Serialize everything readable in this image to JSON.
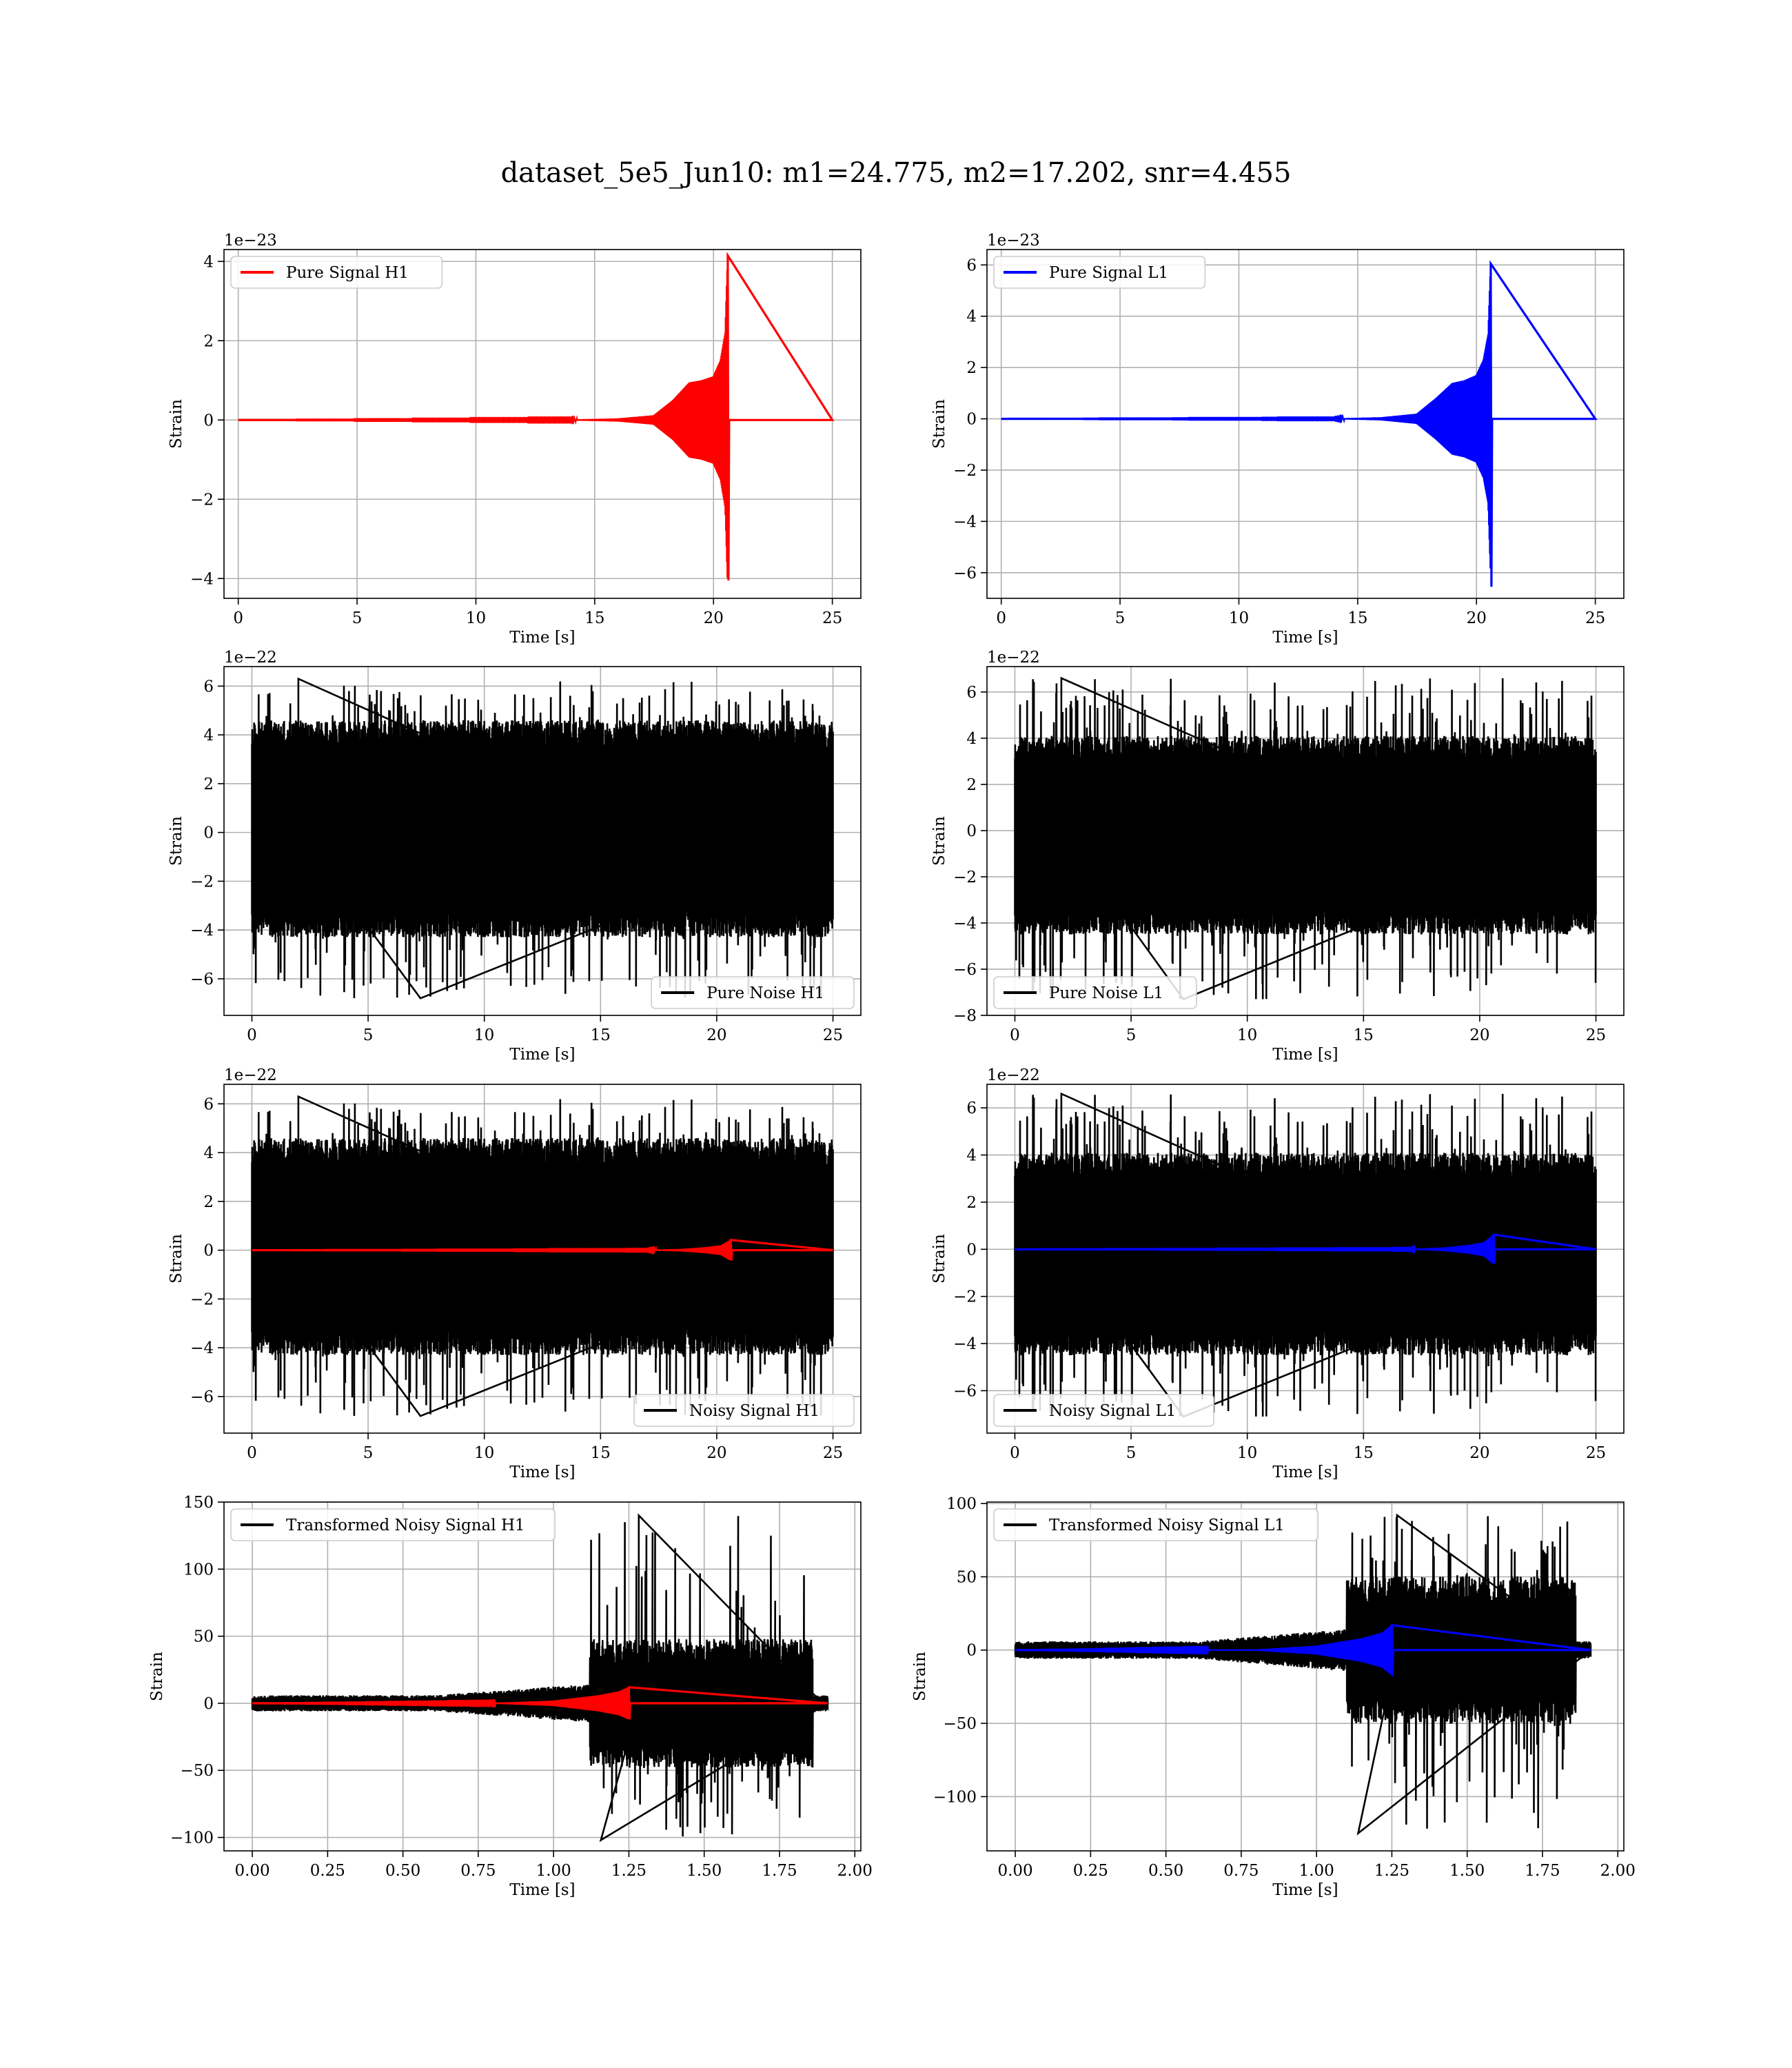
{
  "figure": {
    "suptitle": "dataset_5e5_Jun10: m1=24.775, m2=17.202, snr=4.455",
    "colors": {
      "h1_signal": "#ff0000",
      "l1_signal": "#0000ff",
      "noise": "#000000",
      "grid": "#b0b0b0"
    }
  },
  "chart_data": [
    {
      "id": "pure-signal-h1",
      "type": "line",
      "xlabel": "Time [s]",
      "ylabel": "Strain",
      "offset_text": "1e−23",
      "xlim": [
        -0.6,
        26.2
      ],
      "ylim": [
        -4.5,
        4.3
      ],
      "xticks": [
        0,
        5,
        10,
        15,
        20,
        25
      ],
      "xtick_labels": [
        "0",
        "5",
        "10",
        "15",
        "20",
        "25"
      ],
      "yticks": [
        -4,
        -2,
        0,
        2,
        4
      ],
      "ytick_labels": [
        "−4",
        "−2",
        "0",
        "2",
        "4"
      ],
      "legend_position": "upper-left",
      "grid": true,
      "series": [
        {
          "name": "Pure Signal H1",
          "color": "#ff0000",
          "kind": "chirp",
          "x_start": 0,
          "x_end": 25,
          "merger": 20.6,
          "peak_pos": 4.15,
          "peak_neg": -4.05,
          "envelope": [
            [
              0,
              0
            ],
            [
              14,
              0.01
            ],
            [
              16,
              0.04
            ],
            [
              17.5,
              0.12
            ],
            [
              18.3,
              0.5
            ],
            [
              19,
              0.95
            ],
            [
              19.5,
              1.0
            ],
            [
              20,
              1.1
            ],
            [
              20.3,
              1.5
            ],
            [
              20.5,
              2.2
            ],
            [
              20.6,
              4.1
            ]
          ]
        }
      ]
    },
    {
      "id": "pure-signal-l1",
      "type": "line",
      "xlabel": "Time [s]",
      "ylabel": "Strain",
      "offset_text": "1e−23",
      "xlim": [
        -0.6,
        26.2
      ],
      "ylim": [
        -7.0,
        6.6
      ],
      "xticks": [
        0,
        5,
        10,
        15,
        20,
        25
      ],
      "xtick_labels": [
        "0",
        "5",
        "10",
        "15",
        "20",
        "25"
      ],
      "yticks": [
        -6,
        -4,
        -2,
        0,
        2,
        4,
        6
      ],
      "ytick_labels": [
        "−6",
        "−4",
        "−2",
        "0",
        "2",
        "4",
        "6"
      ],
      "legend_position": "upper-left",
      "grid": true,
      "series": [
        {
          "name": "Pure Signal L1",
          "color": "#0000ff",
          "kind": "chirp",
          "x_start": 0,
          "x_end": 25,
          "merger": 20.6,
          "peak_pos": 6.05,
          "peak_neg": -6.55,
          "envelope": [
            [
              0,
              0
            ],
            [
              14,
              0.01
            ],
            [
              16,
              0.06
            ],
            [
              17.5,
              0.2
            ],
            [
              18.3,
              0.8
            ],
            [
              19,
              1.4
            ],
            [
              19.5,
              1.5
            ],
            [
              20,
              1.7
            ],
            [
              20.3,
              2.3
            ],
            [
              20.5,
              3.3
            ],
            [
              20.6,
              6.0
            ]
          ]
        }
      ]
    },
    {
      "id": "pure-noise-h1",
      "type": "line",
      "xlabel": "Time [s]",
      "ylabel": "Strain",
      "offset_text": "1e−22",
      "xlim": [
        -1.2,
        26.2
      ],
      "ylim": [
        -7.5,
        6.8
      ],
      "xticks": [
        0,
        5,
        10,
        15,
        20,
        25
      ],
      "xtick_labels": [
        "0",
        "5",
        "10",
        "15",
        "20",
        "25"
      ],
      "yticks": [
        -6,
        -4,
        -2,
        0,
        2,
        4,
        6
      ],
      "ytick_labels": [
        "−6",
        "−4",
        "−2",
        "0",
        "2",
        "4",
        "6"
      ],
      "legend_position": "lower-right",
      "grid": true,
      "series": [
        {
          "name": "Pure Noise H1",
          "color": "#000000",
          "kind": "noise",
          "x_start": 0,
          "x_end": 25,
          "band": [
            -3.0,
            3.3
          ],
          "max": 6.3,
          "min": -6.8,
          "seed": 11
        }
      ]
    },
    {
      "id": "pure-noise-l1",
      "type": "line",
      "xlabel": "Time [s]",
      "ylabel": "Strain",
      "offset_text": "1e−22",
      "xlim": [
        -1.2,
        26.2
      ],
      "ylim": [
        -8.0,
        7.1
      ],
      "xticks": [
        0,
        5,
        10,
        15,
        20,
        25
      ],
      "xtick_labels": [
        "0",
        "5",
        "10",
        "15",
        "20",
        "25"
      ],
      "yticks": [
        -8,
        -6,
        -4,
        -2,
        0,
        2,
        4,
        6
      ],
      "ytick_labels": [
        "−8",
        "−6",
        "−4",
        "−2",
        "0",
        "2",
        "4",
        "6"
      ],
      "legend_position": "lower-left",
      "grid": true,
      "series": [
        {
          "name": "Pure Noise L1",
          "color": "#000000",
          "kind": "noise",
          "x_start": 0,
          "x_end": 25,
          "band": [
            -3.2,
            2.8
          ],
          "max": 6.6,
          "min": -7.3,
          "seed": 23
        }
      ]
    },
    {
      "id": "noisy-signal-h1",
      "type": "line",
      "xlabel": "Time [s]",
      "ylabel": "Strain",
      "offset_text": "1e−22",
      "xlim": [
        -1.2,
        26.2
      ],
      "ylim": [
        -7.5,
        6.8
      ],
      "xticks": [
        0,
        5,
        10,
        15,
        20,
        25
      ],
      "xtick_labels": [
        "0",
        "5",
        "10",
        "15",
        "20",
        "25"
      ],
      "yticks": [
        -6,
        -4,
        -2,
        0,
        2,
        4,
        6
      ],
      "ytick_labels": [
        "−6",
        "−4",
        "−2",
        "0",
        "2",
        "4",
        "6"
      ],
      "legend_position": "lower-right",
      "grid": true,
      "series": [
        {
          "name": "Noisy Signal H1",
          "color": "#000000",
          "kind": "noise",
          "x_start": 0,
          "x_end": 25,
          "band": [
            -3.0,
            3.3
          ],
          "max": 6.3,
          "min": -6.8,
          "seed": 11
        },
        {
          "name": "",
          "color": "#ff0000",
          "kind": "chirp",
          "x_start": 0,
          "x_end": 25,
          "merger": 20.6,
          "peak_pos": 0.42,
          "peak_neg": -0.42,
          "envelope": [
            [
              0,
              0
            ],
            [
              17,
              0.01
            ],
            [
              18.5,
              0.05
            ],
            [
              19.5,
              0.12
            ],
            [
              20.2,
              0.2
            ],
            [
              20.6,
              0.42
            ]
          ]
        }
      ]
    },
    {
      "id": "noisy-signal-l1",
      "type": "line",
      "xlabel": "Time [s]",
      "ylabel": "Strain",
      "offset_text": "1e−22",
      "xlim": [
        -1.2,
        26.2
      ],
      "ylim": [
        -7.8,
        7.0
      ],
      "xticks": [
        0,
        5,
        10,
        15,
        20,
        25
      ],
      "xtick_labels": [
        "0",
        "5",
        "10",
        "15",
        "20",
        "25"
      ],
      "yticks": [
        -6,
        -4,
        -2,
        0,
        2,
        4,
        6
      ],
      "ytick_labels": [
        "−6",
        "−4",
        "−2",
        "0",
        "2",
        "4",
        "6"
      ],
      "legend_position": "lower-left",
      "grid": true,
      "series": [
        {
          "name": "Noisy Signal L1",
          "color": "#000000",
          "kind": "noise",
          "x_start": 0,
          "x_end": 25,
          "band": [
            -3.2,
            2.8
          ],
          "max": 6.6,
          "min": -7.1,
          "seed": 23
        },
        {
          "name": "",
          "color": "#0000ff",
          "kind": "chirp",
          "x_start": 0,
          "x_end": 25,
          "merger": 20.6,
          "peak_pos": 0.62,
          "peak_neg": -0.6,
          "envelope": [
            [
              0,
              0
            ],
            [
              17,
              0.01
            ],
            [
              18.5,
              0.08
            ],
            [
              19.5,
              0.18
            ],
            [
              20.2,
              0.3
            ],
            [
              20.6,
              0.62
            ]
          ]
        }
      ]
    },
    {
      "id": "transformed-noisy-signal-h1",
      "type": "line",
      "xlabel": "Time [s]",
      "ylabel": "Strain",
      "offset_text": "",
      "xlim": [
        -0.094,
        2.02
      ],
      "ylim": [
        -110,
        150
      ],
      "xticks": [
        0,
        0.25,
        0.5,
        0.75,
        1.0,
        1.25,
        1.5,
        1.75,
        2.0
      ],
      "xtick_labels": [
        "0.00",
        "0.25",
        "0.50",
        "0.75",
        "1.00",
        "1.25",
        "1.50",
        "1.75",
        "2.00"
      ],
      "yticks": [
        -100,
        -50,
        0,
        50,
        100,
        150
      ],
      "ytick_labels": [
        "−100",
        "−50",
        "0",
        "50",
        "100",
        "150"
      ],
      "legend_position": "upper-left",
      "grid": true,
      "series": [
        {
          "name": "Transformed Noisy Signal H1",
          "color": "#000000",
          "kind": "whitened",
          "x_start": 0,
          "x_end": 1.91,
          "jump": 1.12,
          "cut": 1.86,
          "low_amp": 5,
          "mid_amp": 12,
          "high_amp": 40,
          "max": 140,
          "min": -102,
          "seed": 37
        },
        {
          "name": "",
          "color": "#ff0000",
          "kind": "chirp",
          "x_start": 0,
          "x_end": 1.91,
          "merger": 1.25,
          "peak_pos": 12,
          "peak_neg": -12,
          "envelope": [
            [
              0,
              0
            ],
            [
              0.8,
              0.3
            ],
            [
              1.0,
              2
            ],
            [
              1.15,
              6
            ],
            [
              1.22,
              9
            ],
            [
              1.25,
              12
            ]
          ]
        }
      ]
    },
    {
      "id": "transformed-noisy-signal-l1",
      "type": "line",
      "xlabel": "Time [s]",
      "ylabel": "Strain",
      "offset_text": "",
      "xlim": [
        -0.094,
        2.02
      ],
      "ylim": [
        -137,
        101
      ],
      "xticks": [
        0,
        0.25,
        0.5,
        0.75,
        1.0,
        1.25,
        1.5,
        1.75,
        2.0
      ],
      "xtick_labels": [
        "0.00",
        "0.25",
        "0.50",
        "0.75",
        "1.00",
        "1.25",
        "1.50",
        "1.75",
        "2.00"
      ],
      "yticks": [
        -100,
        -50,
        0,
        50,
        100
      ],
      "ytick_labels": [
        "−100",
        "−50",
        "0",
        "50",
        "100"
      ],
      "legend_position": "upper-left",
      "grid": true,
      "series": [
        {
          "name": "Transformed Noisy Signal L1",
          "color": "#000000",
          "kind": "whitened",
          "x_start": 0,
          "x_end": 1.91,
          "jump": 1.1,
          "cut": 1.86,
          "low_amp": 5,
          "mid_amp": 12,
          "high_amp": 42,
          "max": 92,
          "min": -125,
          "seed": 53
        },
        {
          "name": "",
          "color": "#0000ff",
          "kind": "chirp",
          "x_start": 0,
          "x_end": 1.91,
          "merger": 1.25,
          "peak_pos": 17,
          "peak_neg": -18,
          "envelope": [
            [
              0,
              0
            ],
            [
              0.8,
              0.4
            ],
            [
              1.0,
              3
            ],
            [
              1.15,
              8
            ],
            [
              1.22,
              12
            ],
            [
              1.25,
              17
            ]
          ]
        }
      ]
    }
  ]
}
